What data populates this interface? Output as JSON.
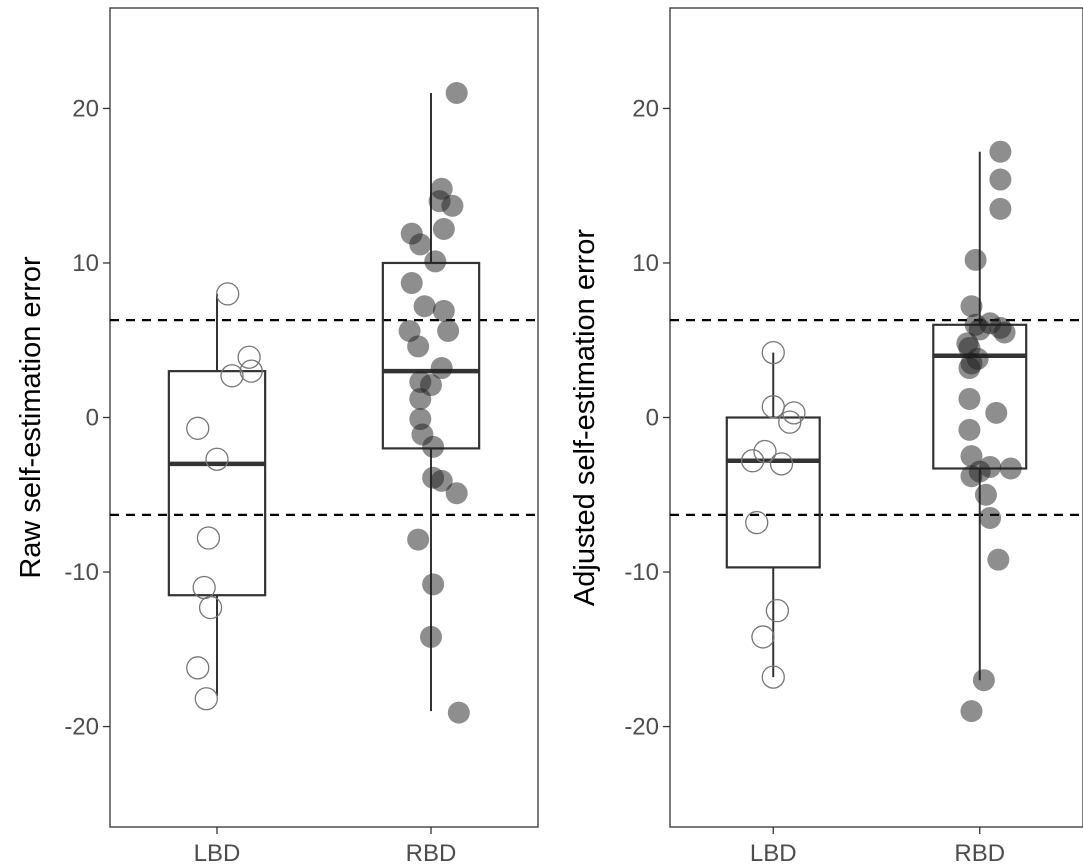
{
  "chart_data": [
    {
      "type": "box",
      "panel": "left",
      "xlabel": "",
      "ylabel": "Raw self-estimation error",
      "ylim": [
        -26.5,
        26.5
      ],
      "yticks": [
        20,
        10,
        0,
        -10,
        -20
      ],
      "ytick_labels": [
        "20",
        "10",
        "0",
        "-10",
        "-20"
      ],
      "categories": [
        "LBD",
        "RBD"
      ],
      "reference_lines": [
        6.3,
        -6.3
      ],
      "grid": false,
      "boxes": [
        {
          "category": "LBD",
          "whisker_low": -18,
          "q1": -11.5,
          "median": -3,
          "q3": 3,
          "whisker_high": 8
        },
        {
          "category": "RBD",
          "whisker_low": -19,
          "q1": -2,
          "median": 3,
          "q3": 10,
          "whisker_high": 21
        }
      ],
      "points": [
        {
          "category": "LBD",
          "style": "open",
          "jitter": [
            0.05,
            0.15,
            0.07,
            0.16,
            -0.09,
            0.0,
            -0.04,
            -0.06,
            -0.03,
            -0.09,
            -0.05
          ],
          "values": [
            8,
            3.9,
            2.7,
            3.0,
            -0.7,
            -2.7,
            -7.8,
            -11.0,
            -12.3,
            -16.2,
            -18.2
          ]
        },
        {
          "category": "RBD",
          "style": "filled",
          "jitter": [
            0.12,
            0.05,
            0.04,
            0.1,
            0.06,
            -0.09,
            -0.05,
            -0.09,
            0.02,
            0.06,
            -0.1,
            -0.03,
            0.08,
            -0.06,
            0.05,
            0.0,
            -0.05,
            -0.05,
            -0.05,
            -0.04,
            0.01,
            0.01,
            0.05,
            -0.06,
            0.01,
            0.0,
            0.12,
            0.13
          ],
          "values": [
            21,
            14.8,
            14.0,
            13.7,
            12.2,
            11.9,
            11.2,
            8.7,
            10.1,
            6.9,
            5.6,
            7.2,
            5.6,
            4.6,
            3.2,
            2.1,
            2.3,
            1.2,
            -0.1,
            -1.1,
            -1.9,
            -3.9,
            -4.1,
            -7.9,
            -10.8,
            -14.2,
            -4.9,
            -19.1
          ]
        }
      ]
    },
    {
      "type": "box",
      "panel": "right",
      "xlabel": "",
      "ylabel": "Adjusted self-estimation error",
      "ylim": [
        -26.5,
        26.5
      ],
      "yticks": [
        20,
        10,
        0,
        -10,
        -20
      ],
      "ytick_labels": [
        "20",
        "10",
        "0",
        "-10",
        "-20"
      ],
      "categories": [
        "LBD",
        "RBD"
      ],
      "reference_lines": [
        6.3,
        -6.3
      ],
      "grid": false,
      "boxes": [
        {
          "category": "LBD",
          "whisker_low": -16.8,
          "q1": -9.7,
          "median": -2.8,
          "q3": 0,
          "whisker_high": 4.2
        },
        {
          "category": "RBD",
          "whisker_low": -17.0,
          "q1": -3.3,
          "median": 4.0,
          "q3": 6.0,
          "whisker_high": 17.2
        }
      ],
      "points": [
        {
          "category": "LBD",
          "style": "open",
          "jitter": [
            0.0,
            0.0,
            0.1,
            0.08,
            -0.04,
            -0.1,
            0.04,
            -0.08,
            0.02,
            -0.05,
            0.0
          ],
          "values": [
            4.2,
            0.7,
            0.3,
            -0.3,
            -2.2,
            -2.8,
            -3.0,
            -6.8,
            -12.5,
            -14.2,
            -16.8
          ]
        },
        {
          "category": "RBD",
          "style": "filled",
          "jitter": [
            0.1,
            0.1,
            0.1,
            -0.02,
            -0.04,
            -0.02,
            0.05,
            0.12,
            0.0,
            -0.05,
            0.1,
            -0.06,
            -0.04,
            -0.05,
            -0.01,
            -0.05,
            0.08,
            -0.05,
            -0.04,
            0.0,
            0.05,
            -0.04,
            0.03,
            0.05,
            0.09,
            0.02,
            -0.04,
            0.15
          ],
          "values": [
            17.2,
            15.4,
            13.5,
            10.2,
            7.2,
            6.0,
            6.1,
            5.5,
            5.7,
            4.5,
            5.8,
            4.8,
            3.5,
            3.2,
            3.8,
            1.2,
            0.3,
            -0.8,
            -2.5,
            -3.5,
            -3.2,
            -3.8,
            -5.0,
            -6.5,
            -9.2,
            -17.0,
            -19.0,
            -3.3
          ]
        }
      ]
    }
  ]
}
